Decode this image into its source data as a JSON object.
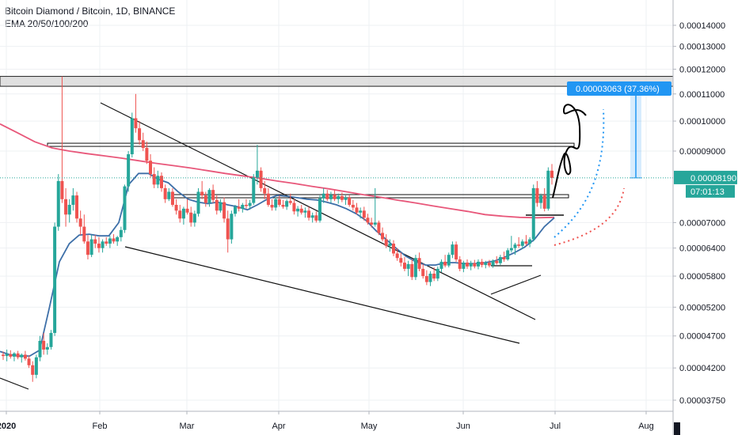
{
  "header": {
    "title": "Bitcoin Diamond / Bitcoin, 1D, BINANCE",
    "indicator": "EMA 20/50/100/200"
  },
  "colors": {
    "up": "#26a69a",
    "down": "#ef5350",
    "ema_fast": "#3d6fa8",
    "ema_slow": "#e8577a",
    "trendline": "#000000",
    "measure": "#2196f3",
    "dotted_path_1": "#2196f3",
    "dotted_path_2": "#ef5350",
    "resistance_zone": "#d5d5d5"
  },
  "chart_data": {
    "type": "candlestick",
    "title": "Bitcoin Diamond / Bitcoin, 1D, BINANCE",
    "indicators": [
      "EMA 20/50/100/200"
    ],
    "x_ticks": [
      "2020",
      "Feb",
      "Mar",
      "Apr",
      "May",
      "Jun",
      "Jul",
      "Aug"
    ],
    "y_ticks": [
      "0.00014000",
      "0.00013000",
      "0.00012000",
      "0.00011000",
      "0.00010000",
      "0.00009000",
      "0.00007000",
      "0.00006400",
      "0.00005800",
      "0.00005200",
      "0.00004700",
      "0.00004200",
      "0.00003750"
    ],
    "y_log": true,
    "grid": true,
    "last_price": "0.00008190",
    "countdown": "07:01:13",
    "measure_label": "0.00003063 (37.36%)",
    "candles_ohlc": [
      [
        4.4e-05,
        4.45e-05,
        4.32e-05,
        4.38e-05
      ],
      [
        4.38e-05,
        4.48e-05,
        4.3e-05,
        4.41e-05
      ],
      [
        4.41e-05,
        4.47e-05,
        4.34e-05,
        4.37e-05
      ],
      [
        4.37e-05,
        4.44e-05,
        4.3e-05,
        4.42e-05
      ],
      [
        4.42e-05,
        4.46e-05,
        4.33e-05,
        4.36e-05
      ],
      [
        4.36e-05,
        4.42e-05,
        4.28e-05,
        4.4e-05
      ],
      [
        4.4e-05,
        4.46e-05,
        4.31e-05,
        4.34e-05
      ],
      [
        4.34e-05,
        4.39e-05,
        4.2e-05,
        4.24e-05
      ],
      [
        4.24e-05,
        4.3e-05,
        4e-05,
        4.1e-05
      ],
      [
        4.1e-05,
        4.4e-05,
        4.05e-05,
        4.36e-05
      ],
      [
        4.36e-05,
        4.7e-05,
        4.3e-05,
        4.62e-05
      ],
      [
        4.62e-05,
        4.75e-05,
        4.4e-05,
        4.48e-05
      ],
      [
        4.48e-05,
        4.58e-05,
        4.4e-05,
        4.52e-05
      ],
      [
        4.52e-05,
        4.8e-05,
        4.48e-05,
        4.75e-05
      ],
      [
        4.75e-05,
        7e-05,
        4.7e-05,
        6.9e-05
      ],
      [
        6.9e-05,
        8.3e-05,
        6.8e-05,
        8.1e-05
      ],
      [
        8.1e-05,
        0.000117,
        7.5e-05,
        7.6e-05
      ],
      [
        7.6e-05,
        7.9e-05,
        6.9e-05,
        7.2e-05
      ],
      [
        7.2e-05,
        7.6e-05,
        7e-05,
        7.45e-05
      ],
      [
        7.45e-05,
        7.9e-05,
        7.3e-05,
        7.7e-05
      ],
      [
        7.7e-05,
        7.8e-05,
        7e-05,
        7.1e-05
      ],
      [
        7.1e-05,
        7.3e-05,
        6.7e-05,
        6.9e-05
      ],
      [
        6.9e-05,
        7.2e-05,
        6.5e-05,
        6.55e-05
      ],
      [
        6.55e-05,
        6.7e-05,
        6.15e-05,
        6.25e-05
      ],
      [
        6.25e-05,
        6.7e-05,
        6.2e-05,
        6.6e-05
      ],
      [
        6.6e-05,
        6.7e-05,
        6.4e-05,
        6.5e-05
      ],
      [
        6.5e-05,
        6.65e-05,
        6.3e-05,
        6.4e-05
      ],
      [
        6.4e-05,
        6.6e-05,
        6.3e-05,
        6.55e-05
      ],
      [
        6.55e-05,
        6.65e-05,
        6.45e-05,
        6.5e-05
      ],
      [
        6.5e-05,
        6.68e-05,
        6.4e-05,
        6.62e-05
      ],
      [
        6.62e-05,
        6.72e-05,
        6.5e-05,
        6.55e-05
      ],
      [
        6.55e-05,
        6.68e-05,
        6.45e-05,
        6.65e-05
      ],
      [
        6.65e-05,
        6.9e-05,
        6.55e-05,
        6.82e-05
      ],
      [
        6.82e-05,
        8e-05,
        6.75e-05,
        7.95e-05
      ],
      [
        7.95e-05,
        9e-05,
        7.8e-05,
        8.9e-05
      ],
      [
        8.9e-05,
        0.000103,
        8.8e-05,
        0.000101
      ],
      [
        0.000101,
        0.00011,
        9.6e-05,
        9.75e-05
      ],
      [
        9.75e-05,
        0.0001,
        9.2e-05,
        9.35e-05
      ],
      [
        9.35e-05,
        9.6e-05,
        9e-05,
        9.1e-05
      ],
      [
        9.1e-05,
        9.3e-05,
        8.6e-05,
        8.7e-05
      ],
      [
        8.7e-05,
        8.9e-05,
        8.2e-05,
        8.3e-05
      ],
      [
        8.3e-05,
        8.5e-05,
        7.9e-05,
        8e-05
      ],
      [
        8e-05,
        8.4e-05,
        7.9e-05,
        8.25e-05
      ],
      [
        8.25e-05,
        8.35e-05,
        7.8e-05,
        7.9e-05
      ],
      [
        7.9e-05,
        8e-05,
        7.5e-05,
        7.6e-05
      ],
      [
        7.6e-05,
        7.9e-05,
        7.55e-05,
        7.8e-05
      ],
      [
        7.8e-05,
        7.9e-05,
        7.4e-05,
        7.45e-05
      ],
      [
        7.45e-05,
        7.6e-05,
        7.2e-05,
        7.3e-05
      ],
      [
        7.3e-05,
        7.45e-05,
        7e-05,
        7.1e-05
      ],
      [
        7.1e-05,
        7.4e-05,
        6.95e-05,
        7.35e-05
      ],
      [
        7.35e-05,
        7.6e-05,
        7.2e-05,
        7.25e-05
      ],
      [
        7.25e-05,
        7.4e-05,
        6.9e-05,
        7e-05
      ],
      [
        7e-05,
        7.3e-05,
        6.9e-05,
        7.22e-05
      ],
      [
        7.22e-05,
        7.9e-05,
        7.15e-05,
        7.8e-05
      ],
      [
        7.8e-05,
        8.1e-05,
        7.6e-05,
        7.7e-05
      ],
      [
        7.7e-05,
        7.8e-05,
        7.4e-05,
        7.5e-05
      ],
      [
        7.5e-05,
        7.9e-05,
        7.4e-05,
        7.85e-05
      ],
      [
        7.85e-05,
        8e-05,
        7.5e-05,
        7.58e-05
      ],
      [
        7.58e-05,
        7.7e-05,
        7.2e-05,
        7.3e-05
      ],
      [
        7.3e-05,
        7.6e-05,
        7.25e-05,
        7.52e-05
      ],
      [
        7.52e-05,
        7.65e-05,
        7e-05,
        7.1e-05
      ],
      [
        7.1e-05,
        7.3e-05,
        6.3e-05,
        6.6e-05
      ],
      [
        6.6e-05,
        7.3e-05,
        6.5e-05,
        7.22e-05
      ],
      [
        7.22e-05,
        7.45e-05,
        7.15e-05,
        7.4e-05
      ],
      [
        7.4e-05,
        7.6e-05,
        7.28e-05,
        7.35e-05
      ],
      [
        7.35e-05,
        7.5e-05,
        7.25e-05,
        7.45e-05
      ],
      [
        7.45e-05,
        7.6e-05,
        7.35e-05,
        7.42e-05
      ],
      [
        7.42e-05,
        7.58e-05,
        7.32e-05,
        7.5e-05
      ],
      [
        7.5e-05,
        8.3e-05,
        7.45e-05,
        8.2e-05
      ],
      [
        8.2e-05,
        9.2e-05,
        8e-05,
        8.4e-05
      ],
      [
        8.4e-05,
        8.5e-05,
        7.8e-05,
        7.9e-05
      ],
      [
        7.9e-05,
        8.1e-05,
        7.6e-05,
        7.75e-05
      ],
      [
        7.75e-05,
        7.9e-05,
        7.4e-05,
        7.45e-05
      ],
      [
        7.45e-05,
        7.6e-05,
        7.3e-05,
        7.38e-05
      ],
      [
        7.38e-05,
        7.65e-05,
        7.3e-05,
        7.6e-05
      ],
      [
        7.6e-05,
        7.7e-05,
        7.4e-05,
        7.45e-05
      ],
      [
        7.45e-05,
        7.58e-05,
        7.35e-05,
        7.4e-05
      ],
      [
        7.4e-05,
        7.6e-05,
        7.32e-05,
        7.55e-05
      ],
      [
        7.55e-05,
        7.75e-05,
        7.45e-05,
        7.5e-05
      ],
      [
        7.5e-05,
        7.6e-05,
        7.2e-05,
        7.28e-05
      ],
      [
        7.28e-05,
        7.42e-05,
        7.15e-05,
        7.35e-05
      ],
      [
        7.35e-05,
        7.45e-05,
        7.2e-05,
        7.25e-05
      ],
      [
        7.25e-05,
        7.38e-05,
        7.12e-05,
        7.3e-05
      ],
      [
        7.3e-05,
        7.4e-05,
        7.05e-05,
        7.12e-05
      ],
      [
        7.12e-05,
        7.25e-05,
        7e-05,
        7.18e-05
      ],
      [
        7.18e-05,
        7.28e-05,
        7e-05,
        7.05e-05
      ],
      [
        7.05e-05,
        7.7e-05,
        7e-05,
        7.62e-05
      ],
      [
        7.62e-05,
        7.9e-05,
        7.5e-05,
        7.75e-05
      ],
      [
        7.75e-05,
        7.85e-05,
        7.55e-05,
        7.6e-05
      ],
      [
        7.6e-05,
        7.8e-05,
        7.5e-05,
        7.72e-05
      ],
      [
        7.72e-05,
        7.85e-05,
        7.55e-05,
        7.6e-05
      ],
      [
        7.6e-05,
        7.75e-05,
        7.48e-05,
        7.68e-05
      ],
      [
        7.68e-05,
        7.78e-05,
        7.52e-05,
        7.58e-05
      ],
      [
        7.58e-05,
        7.7e-05,
        7.45e-05,
        7.64e-05
      ],
      [
        7.64e-05,
        7.72e-05,
        7.4e-05,
        7.45e-05
      ],
      [
        7.45e-05,
        7.58e-05,
        7.3e-05,
        7.38e-05
      ],
      [
        7.38e-05,
        7.5e-05,
        7.2e-05,
        7.25e-05
      ],
      [
        7.25e-05,
        7.38e-05,
        7.1e-05,
        7.3e-05
      ],
      [
        7.3e-05,
        7.4e-05,
        7.05e-05,
        7.12e-05
      ],
      [
        7.12e-05,
        7.22e-05,
        6.95e-05,
        7e-05
      ],
      [
        7e-05,
        7.12e-05,
        6.88e-05,
        6.95e-05
      ],
      [
        6.95e-05,
        7.9e-05,
        6.9e-05,
        7e-05
      ],
      [
        7e-05,
        7.05e-05,
        6.7e-05,
        6.75e-05
      ],
      [
        6.75e-05,
        6.88e-05,
        6.55e-05,
        6.6e-05
      ],
      [
        6.6e-05,
        6.72e-05,
        6.4e-05,
        6.45e-05
      ],
      [
        6.45e-05,
        6.6e-05,
        6.32e-05,
        6.5e-05
      ],
      [
        6.5e-05,
        6.58e-05,
        6.22e-05,
        6.28e-05
      ],
      [
        6.28e-05,
        6.4e-05,
        6.12e-05,
        6.18e-05
      ],
      [
        6.18e-05,
        6.3e-05,
        6e-05,
        6.08e-05
      ],
      [
        6.08e-05,
        6.2e-05,
        5.9e-05,
        5.95e-05
      ],
      [
        5.95e-05,
        6.12e-05,
        5.8e-05,
        6.05e-05
      ],
      [
        6.05e-05,
        6.15e-05,
        5.72e-05,
        5.78e-05
      ],
      [
        5.78e-05,
        6.25e-05,
        5.72e-05,
        6.18e-05
      ],
      [
        6.18e-05,
        6.3e-05,
        5.9e-05,
        5.95e-05
      ],
      [
        5.95e-05,
        6.05e-05,
        5.75e-05,
        5.8e-05
      ],
      [
        5.8e-05,
        5.92e-05,
        5.62e-05,
        5.68e-05
      ],
      [
        5.68e-05,
        5.9e-05,
        5.6e-05,
        5.85e-05
      ],
      [
        5.85e-05,
        5.98e-05,
        5.7e-05,
        5.75e-05
      ],
      [
        5.75e-05,
        6e-05,
        5.7e-05,
        5.95e-05
      ],
      [
        5.95e-05,
        6.15e-05,
        5.88e-05,
        6.1e-05
      ],
      [
        6.1e-05,
        6.25e-05,
        5.98e-05,
        6.02e-05
      ],
      [
        6.02e-05,
        6.3e-05,
        5.98e-05,
        6.25e-05
      ],
      [
        6.25e-05,
        6.55e-05,
        6.18e-05,
        6.48e-05
      ],
      [
        6.48e-05,
        6.55e-05,
        6.1e-05,
        6.15e-05
      ],
      [
        6.15e-05,
        6.22e-05,
        5.9e-05,
        5.95e-05
      ],
      [
        5.95e-05,
        6.12e-05,
        5.88e-05,
        6.08e-05
      ],
      [
        6.08e-05,
        6.15e-05,
        5.95e-05,
        6e-05
      ],
      [
        6e-05,
        6.12e-05,
        5.92e-05,
        6.07e-05
      ],
      [
        6.07e-05,
        6.14e-05,
        5.96e-05,
        6e-05
      ],
      [
        6e-05,
        6.15e-05,
        5.94e-05,
        6.1e-05
      ],
      [
        6.1e-05,
        6.16e-05,
        5.98e-05,
        6.03e-05
      ],
      [
        6.03e-05,
        6.12e-05,
        5.96e-05,
        6.08e-05
      ],
      [
        6.08e-05,
        6.14e-05,
        5.98e-05,
        6.02e-05
      ],
      [
        6.02e-05,
        6.15e-05,
        5.97e-05,
        6.12e-05
      ],
      [
        6.12e-05,
        6.22e-05,
        6.04e-05,
        6.07e-05
      ],
      [
        6.07e-05,
        6.25e-05,
        6.03e-05,
        6.2e-05
      ],
      [
        6.2e-05,
        6.32e-05,
        6.1e-05,
        6.15e-05
      ],
      [
        6.15e-05,
        6.4e-05,
        6.12e-05,
        6.35e-05
      ],
      [
        6.35e-05,
        6.68e-05,
        6.3e-05,
        6.4e-05
      ],
      [
        6.4e-05,
        6.52e-05,
        6.25e-05,
        6.48e-05
      ],
      [
        6.48e-05,
        6.65e-05,
        6.4e-05,
        6.45e-05
      ],
      [
        6.45e-05,
        6.6e-05,
        6.38e-05,
        6.55e-05
      ],
      [
        6.55e-05,
        6.7e-05,
        6.45e-05,
        6.5e-05
      ],
      [
        6.5e-05,
        6.65e-05,
        6.42e-05,
        6.6e-05
      ],
      [
        6.6e-05,
        8e-05,
        6.55e-05,
        7.9e-05
      ],
      [
        7.9e-05,
        8.1e-05,
        7.4e-05,
        7.5e-05
      ],
      [
        7.5e-05,
        7.75e-05,
        7.35e-05,
        7.7e-05
      ],
      [
        7.7e-05,
        7.9e-05,
        7.28e-05,
        7.35e-05
      ],
      [
        7.35e-05,
        8.5e-05,
        7.3e-05,
        8.4e-05
      ],
      [
        8.4e-05,
        8.6e-05,
        8e-05,
        8.19e-05
      ]
    ],
    "ema_fast_trace": [
      4.45e-05,
      4.4e-05,
      4.38e-05,
      4.38e-05,
      4.47e-05,
      5.2e-05,
      6.1e-05,
      6.5e-05,
      6.7e-05,
      6.72e-05,
      6.68e-05,
      6.68e-05,
      7e-05,
      8e-05,
      8.32e-05,
      8.32e-05,
      8.15e-05,
      8.05e-05,
      7.8e-05,
      7.6e-05,
      7.52e-05,
      7.48e-05,
      7.52e-05,
      7.45e-05,
      7.4e-05,
      7.32e-05,
      7.45e-05,
      7.6e-05,
      7.7e-05,
      7.68e-05,
      7.64e-05,
      7.6e-05,
      7.58e-05,
      7.52e-05,
      7.45e-05,
      7.35e-05,
      7.22e-05,
      7.05e-05,
      6.8e-05,
      6.6e-05,
      6.4e-05,
      6.22e-05,
      6.1e-05,
      6.03e-05,
      6.03e-05,
      6.08e-05,
      6.08e-05,
      6.06e-05,
      6.06e-05,
      6.08e-05,
      6.12e-05,
      6.2e-05,
      6.3e-05,
      6.42e-05,
      6.6e-05,
      6.9e-05,
      7.12e-05
    ],
    "ema_slow_trace": [
      9.9e-05,
      9.6e-05,
      9.3e-05,
      9.1e-05,
      9e-05,
      8.92e-05,
      8.85e-05,
      8.78e-05,
      8.7e-05,
      8.62e-05,
      8.55e-05,
      8.48e-05,
      8.4e-05,
      8.32e-05,
      8.25e-05,
      8.18e-05,
      8.1e-05,
      8.03e-05,
      7.95e-05,
      7.88e-05,
      7.8e-05,
      7.72e-05,
      7.65e-05,
      7.57e-05,
      7.5e-05,
      7.42e-05,
      7.35e-05,
      7.28e-05,
      7.2e-05,
      7.16e-05,
      7.13e-05,
      7.12e-05,
      7.13e-05
    ]
  },
  "measure": {
    "from_price": 8.19e-05,
    "to_price": 0.00011253
  },
  "levels": {
    "resistance_zone": [
      0.000113,
      0.000117
    ],
    "upper_line": 9.2e-05,
    "mid_line": 7.68e-05
  },
  "x_labels": {
    "2020": "2020",
    "feb": "Feb",
    "mar": "Mar",
    "apr": "Apr",
    "may": "May",
    "jun": "Jun",
    "jul": "Jul",
    "aug": "Aug"
  },
  "y_labels": [
    "0.00014000",
    "0.00013000",
    "0.00012000",
    "0.00011000",
    "0.00010000",
    "0.00009000",
    "0.00007000",
    "0.00006400",
    "0.00005800",
    "0.00005200",
    "0.00004700",
    "0.00004200",
    "0.00003750"
  ]
}
